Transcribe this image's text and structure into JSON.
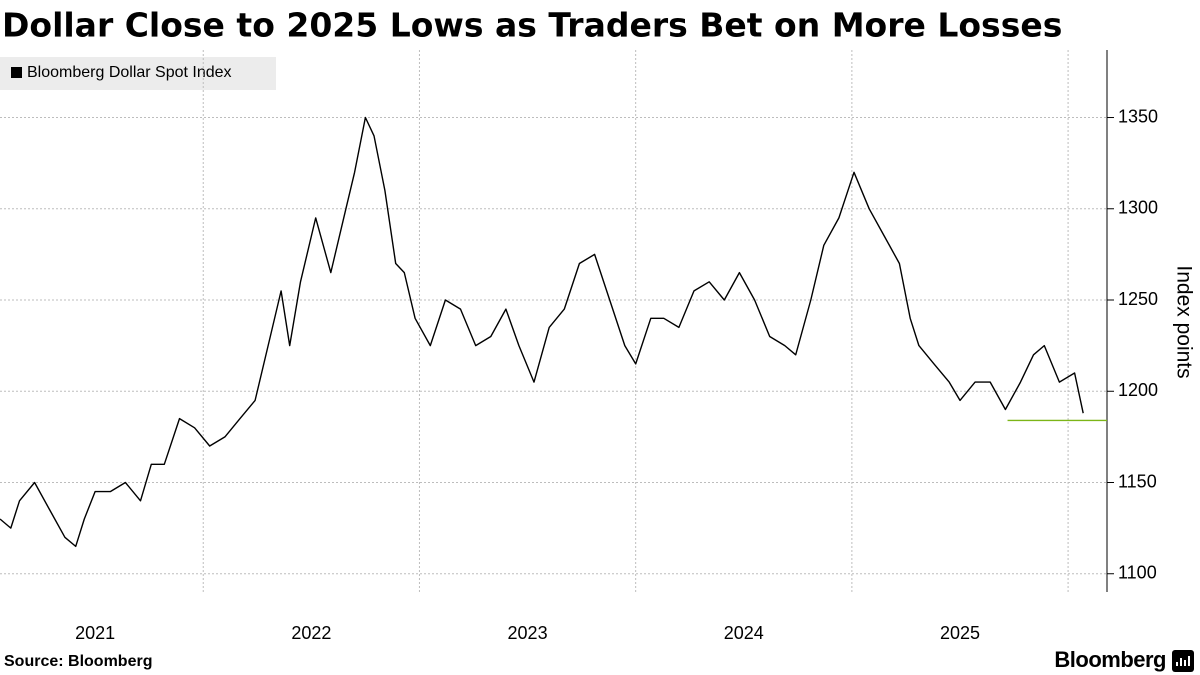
{
  "chart_data": {
    "type": "line",
    "title": "Dollar Close to 2025 Lows as Traders Bet on More Losses",
    "y_axis_label": "Index points",
    "source": "Source: Bloomberg",
    "brand": "Bloomberg",
    "series": [
      {
        "name": "Bloomberg Dollar Spot Index",
        "color": "#000000",
        "x": [
          2021.06,
          2021.11,
          2021.15,
          2021.22,
          2021.29,
          2021.36,
          2021.41,
          2021.45,
          2021.5,
          2021.57,
          2021.64,
          2021.71,
          2021.76,
          2021.82,
          2021.89,
          2021.96,
          2022.03,
          2022.1,
          2022.17,
          2022.24,
          2022.31,
          2022.36,
          2022.4,
          2022.45,
          2022.52,
          2022.59,
          2022.66,
          2022.7,
          2022.75,
          2022.79,
          2022.84,
          2022.89,
          2022.93,
          2022.98,
          2023.05,
          2023.12,
          2023.19,
          2023.26,
          2023.33,
          2023.4,
          2023.46,
          2023.53,
          2023.6,
          2023.67,
          2023.74,
          2023.81,
          2023.88,
          2023.95,
          2024.0,
          2024.07,
          2024.13,
          2024.2,
          2024.27,
          2024.34,
          2024.41,
          2024.48,
          2024.55,
          2024.62,
          2024.69,
          2024.74,
          2024.81,
          2024.87,
          2024.94,
          2025.01,
          2025.08,
          2025.15,
          2025.22,
          2025.27,
          2025.31,
          2025.38,
          2025.45,
          2025.5,
          2025.57,
          2025.64,
          2025.71,
          2025.78,
          2025.84,
          2025.89,
          2025.96,
          2026.03,
          2026.07
        ],
        "values": [
          1130,
          1125,
          1140,
          1150,
          1135,
          1120,
          1115,
          1130,
          1145,
          1145,
          1150,
          1140,
          1160,
          1160,
          1185,
          1180,
          1170,
          1175,
          1185,
          1195,
          1230,
          1255,
          1225,
          1260,
          1295,
          1265,
          1300,
          1320,
          1350,
          1340,
          1310,
          1270,
          1265,
          1240,
          1225,
          1250,
          1245,
          1225,
          1230,
          1245,
          1225,
          1205,
          1235,
          1245,
          1270,
          1275,
          1250,
          1225,
          1215,
          1240,
          1240,
          1235,
          1255,
          1260,
          1250,
          1265,
          1250,
          1230,
          1225,
          1220,
          1250,
          1280,
          1295,
          1320,
          1300,
          1285,
          1270,
          1240,
          1225,
          1215,
          1205,
          1195,
          1205,
          1205,
          1190,
          1205,
          1220,
          1225,
          1205,
          1210,
          1188
        ]
      }
    ],
    "reference_line": {
      "value": 1184,
      "x_start": 2025.72,
      "color": "#7cb518"
    },
    "xlim": [
      2021.06,
      2026.18
    ],
    "xticks": [
      {
        "value": 2021.5,
        "label": "2021"
      },
      {
        "value": 2022.5,
        "label": "2022"
      },
      {
        "value": 2023.5,
        "label": "2023"
      },
      {
        "value": 2024.5,
        "label": "2024"
      },
      {
        "value": 2025.5,
        "label": "2025"
      }
    ],
    "x_gridlines": [
      2022,
      2023,
      2024,
      2025,
      2026
    ],
    "ylim": [
      1090,
      1387
    ],
    "yticks": [
      1100,
      1150,
      1200,
      1250,
      1300,
      1350
    ],
    "y_axis_side": "right",
    "grid": true
  }
}
